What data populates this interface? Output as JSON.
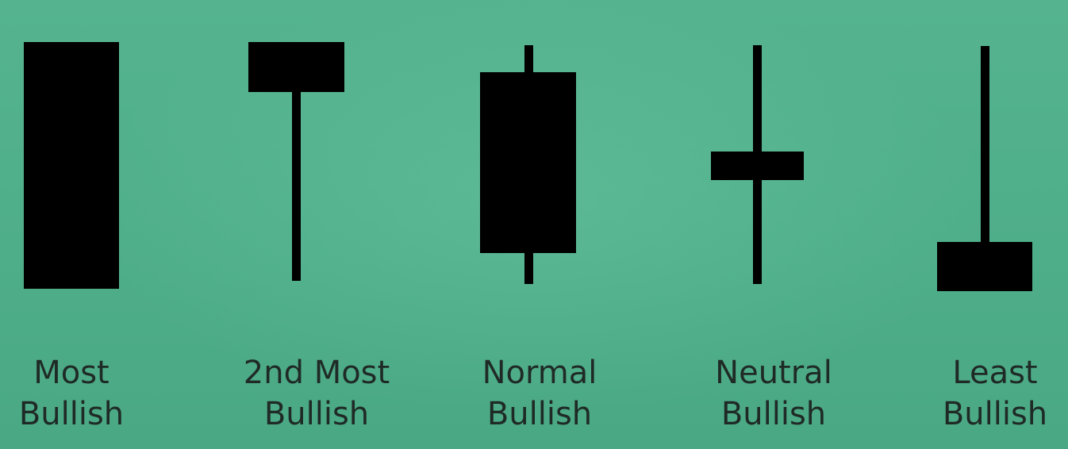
{
  "background_color": "#4fae8b",
  "candle_color": "#000000",
  "label_color": "#1f2a26",
  "candles": [
    {
      "id": "most-bullish",
      "label_line1": "Most",
      "label_line2": "Bullish",
      "shape": "full-body"
    },
    {
      "id": "2nd-most-bullish",
      "label_line1": "2nd Most",
      "label_line2": "Bullish",
      "shape": "body-top-lower-wick"
    },
    {
      "id": "normal-bullish",
      "label_line1": "Normal",
      "label_line2": "Bullish",
      "shape": "body-middle-both-wicks"
    },
    {
      "id": "neutral-bullish",
      "label_line1": "Neutral",
      "label_line2": "Bullish",
      "shape": "small-body-middle-long-wicks"
    },
    {
      "id": "least-bullish",
      "label_line1": "Least",
      "label_line2": "Bullish",
      "shape": "body-bottom-upper-wick"
    }
  ]
}
